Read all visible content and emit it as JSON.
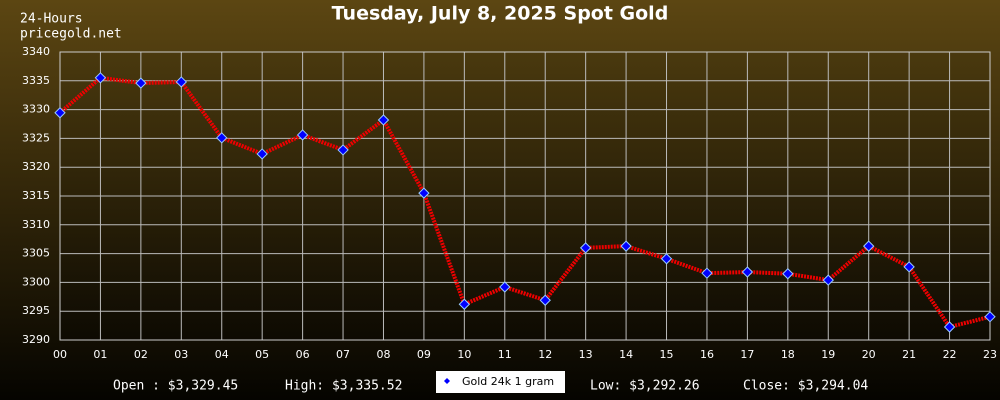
{
  "chart_data": {
    "type": "line",
    "title": "Tuesday, July 8, 2025 Spot Gold",
    "subtitle": "24-Hours",
    "source": "pricegold.net",
    "categories": [
      "00",
      "01",
      "02",
      "03",
      "04",
      "05",
      "06",
      "07",
      "08",
      "09",
      "10",
      "11",
      "12",
      "13",
      "14",
      "15",
      "16",
      "17",
      "18",
      "19",
      "20",
      "21",
      "22",
      "23"
    ],
    "series": [
      {
        "name": "Gold 24k 1 gram",
        "color": "#ee0000",
        "marker_color": "#0000ff",
        "values": [
          3329.45,
          3335.52,
          3334.6,
          3334.8,
          3325.1,
          3322.3,
          3325.6,
          3323.0,
          3328.2,
          3315.5,
          3296.2,
          3299.2,
          3296.9,
          3306.0,
          3306.3,
          3304.1,
          3301.6,
          3301.8,
          3301.5,
          3300.4,
          3306.3,
          3302.7,
          3292.26,
          3294.04
        ]
      }
    ],
    "ylim": [
      3290,
      3340
    ],
    "yticks": [
      3290,
      3295,
      3300,
      3305,
      3310,
      3315,
      3320,
      3325,
      3330,
      3335,
      3340
    ],
    "grid": true,
    "annotations": [
      "Open : $3,329.45",
      "High: $3,335.52",
      "Low: $3,292.26",
      "Close: $3,294.04"
    ]
  }
}
